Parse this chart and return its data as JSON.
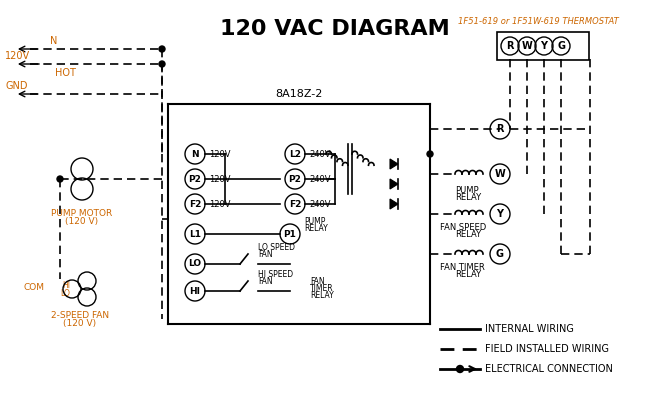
{
  "title": "120 VAC DIAGRAM",
  "title_fontsize": 16,
  "title_color": "#000000",
  "background_color": "#ffffff",
  "line_color": "#000000",
  "dashed_color": "#000000",
  "orange_color": "#cc6600",
  "thermostat_label": "1F51-619 or 1F51W-619 THERMOSTAT",
  "controller_label": "8A18Z-2",
  "legend_items": [
    {
      "label": "INTERNAL WIRING",
      "style": "solid"
    },
    {
      "label": "FIELD INSTALLED WIRING",
      "style": "dashed"
    },
    {
      "label": "ELECTRICAL CONNECTION",
      "style": "dot"
    }
  ]
}
